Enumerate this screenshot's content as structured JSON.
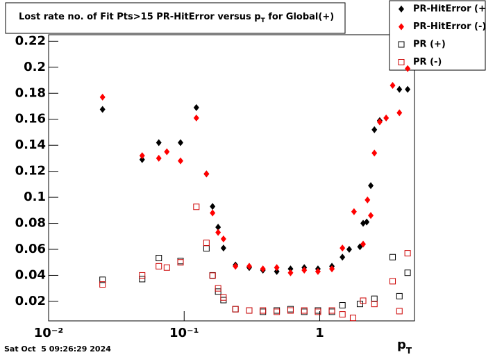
{
  "chart_data": {
    "type": "scatter",
    "title": "Lost rate no. of Fit Pts>15 PR-HitError versus p",
    "title_sub": "T",
    "title_end": " for Global(+)",
    "x_label": "p",
    "x_label_sub": "T",
    "timestamp": "Sat Oct  5 09:26:29 2024",
    "log_x": true,
    "xlim": [
      0.01,
      5
    ],
    "ylim": [
      0.005,
      0.225
    ],
    "xticks": [
      {
        "value": 0.01,
        "label": "10⁻²"
      },
      {
        "value": 0.1,
        "label": "10⁻¹"
      },
      1
    ],
    "yticks": [
      0.02,
      0.04,
      0.06,
      0.08,
      0.1,
      0.12,
      0.14,
      0.16,
      0.18,
      0.2,
      0.22
    ],
    "legend": "top-right",
    "series": [
      {
        "name": "PR-HitError (+)",
        "color": "#000000",
        "marker": "diamond",
        "x": [
          0.025,
          0.049,
          0.065,
          0.094,
          0.123,
          0.146,
          0.162,
          0.178,
          0.195,
          0.239,
          0.302,
          0.381,
          0.482,
          0.609,
          0.769,
          0.97,
          1.23,
          1.47,
          1.65,
          1.98,
          2.09,
          2.22,
          2.38,
          2.53,
          2.77,
          3.87,
          4.45
        ],
        "values": [
          0.1676,
          0.129,
          0.142,
          0.142,
          0.169,
          0.118,
          0.093,
          0.077,
          0.061,
          0.048,
          0.046,
          0.044,
          0.043,
          0.045,
          0.046,
          0.045,
          0.047,
          0.054,
          0.06,
          0.062,
          0.08,
          0.081,
          0.109,
          0.152,
          0.159,
          0.183,
          0.183
        ]
      },
      {
        "name": "PR-HitError (-)",
        "color": "#ff0000",
        "marker": "diamond",
        "x": [
          0.025,
          0.049,
          0.065,
          0.0745,
          0.094,
          0.123,
          0.146,
          0.162,
          0.178,
          0.195,
          0.239,
          0.302,
          0.381,
          0.482,
          0.609,
          0.769,
          0.97,
          1.23,
          1.47,
          1.79,
          2.09,
          2.25,
          2.38,
          2.53,
          2.77,
          3.09,
          3.45,
          3.87,
          4.45
        ],
        "values": [
          0.177,
          0.132,
          0.13,
          0.135,
          0.128,
          0.161,
          0.118,
          0.088,
          0.073,
          0.068,
          0.047,
          0.047,
          0.045,
          0.046,
          0.042,
          0.044,
          0.043,
          0.045,
          0.061,
          0.089,
          0.064,
          0.098,
          0.086,
          0.134,
          0.158,
          0.161,
          0.186,
          0.165,
          0.199
        ]
      },
      {
        "name": "PR (+)",
        "color": "#000000",
        "marker": "open-square",
        "x": [
          0.025,
          0.049,
          0.065,
          0.094,
          0.146,
          0.162,
          0.178,
          0.195,
          0.239,
          0.302,
          0.381,
          0.482,
          0.609,
          0.769,
          0.97,
          1.23,
          1.47,
          1.98,
          2.53,
          3.45,
          3.87,
          4.45
        ],
        "values": [
          0.0366,
          0.0371,
          0.0533,
          0.051,
          0.0607,
          0.04,
          0.0275,
          0.021,
          0.014,
          0.013,
          0.012,
          0.013,
          0.014,
          0.012,
          0.013,
          0.012,
          0.017,
          0.018,
          0.022,
          0.054,
          0.024,
          0.042
        ]
      },
      {
        "name": "PR (-)",
        "color": "#cc0000",
        "marker": "open-square",
        "x": [
          0.025,
          0.049,
          0.065,
          0.0745,
          0.094,
          0.123,
          0.146,
          0.162,
          0.178,
          0.195,
          0.239,
          0.302,
          0.381,
          0.482,
          0.609,
          0.769,
          0.97,
          1.23,
          1.47,
          1.76,
          2.09,
          2.53,
          3.45,
          3.87,
          4.45
        ],
        "values": [
          0.033,
          0.04,
          0.047,
          0.046,
          0.05,
          0.0927,
          0.065,
          0.0398,
          0.03,
          0.023,
          0.014,
          0.013,
          0.013,
          0.012,
          0.013,
          0.013,
          0.012,
          0.013,
          0.01,
          0.0073,
          0.0205,
          0.018,
          0.0355,
          0.0125,
          0.057
        ]
      }
    ]
  }
}
